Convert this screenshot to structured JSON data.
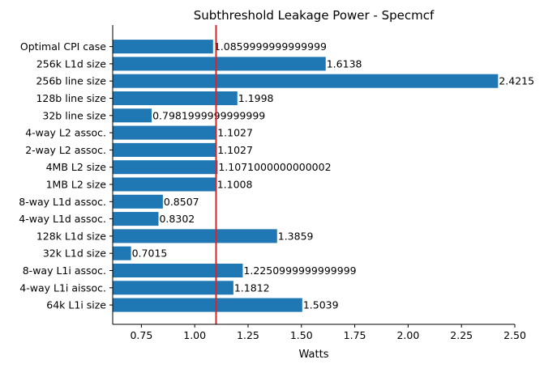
{
  "chart_data": {
    "type": "bar",
    "orientation": "horizontal",
    "title": "Subthreshold Leakage Power - Specmcf",
    "xlabel": "Watts",
    "ylabel": "",
    "xlim": [
      0.6156,
      2.5
    ],
    "xticks": [
      0.75,
      1.0,
      1.25,
      1.5,
      1.75,
      2.0,
      2.25,
      2.5
    ],
    "xtick_labels": [
      "0.75",
      "1.00",
      "1.25",
      "1.50",
      "1.75",
      "2.00",
      "2.25",
      "2.50"
    ],
    "categories": [
      "Optimal CPI case",
      "256k L1d size",
      "256b line size",
      "128b line size",
      "32b line size",
      "4-way L2 assoc.",
      "2-way L2 assoc.",
      "4MB L2 size",
      "1MB L2 size",
      "8-way L1d assoc.",
      "4-way L1d assoc.",
      "128k L1d size",
      "32k L1d size",
      "8-way L1i assoc.",
      "4-way L1i aissoc.",
      "64k L1i size"
    ],
    "values": [
      1.0859999999999999,
      1.6138,
      2.4215,
      1.1998,
      0.7981999999999999,
      1.1027,
      1.1027,
      1.1071000000000002,
      1.1008,
      0.8507,
      0.8302,
      1.3859,
      0.7015,
      1.2250999999999999,
      1.1812,
      1.5039
    ],
    "value_labels": [
      "1.0859999999999999",
      "1.6138",
      "2.4215",
      "1.1998",
      "0.7981999999999999",
      "1.1027",
      "1.1027",
      "1.1071000000000002",
      "1.1008",
      "0.8507",
      "0.8302",
      "1.3859",
      "0.7015",
      "1.2250999999999999",
      "1.1812",
      "1.5039"
    ],
    "reference_line": {
      "x": 1.1,
      "color": "#d62728"
    },
    "bar_color": "#1f77b4",
    "grid": false,
    "legend": "none"
  }
}
